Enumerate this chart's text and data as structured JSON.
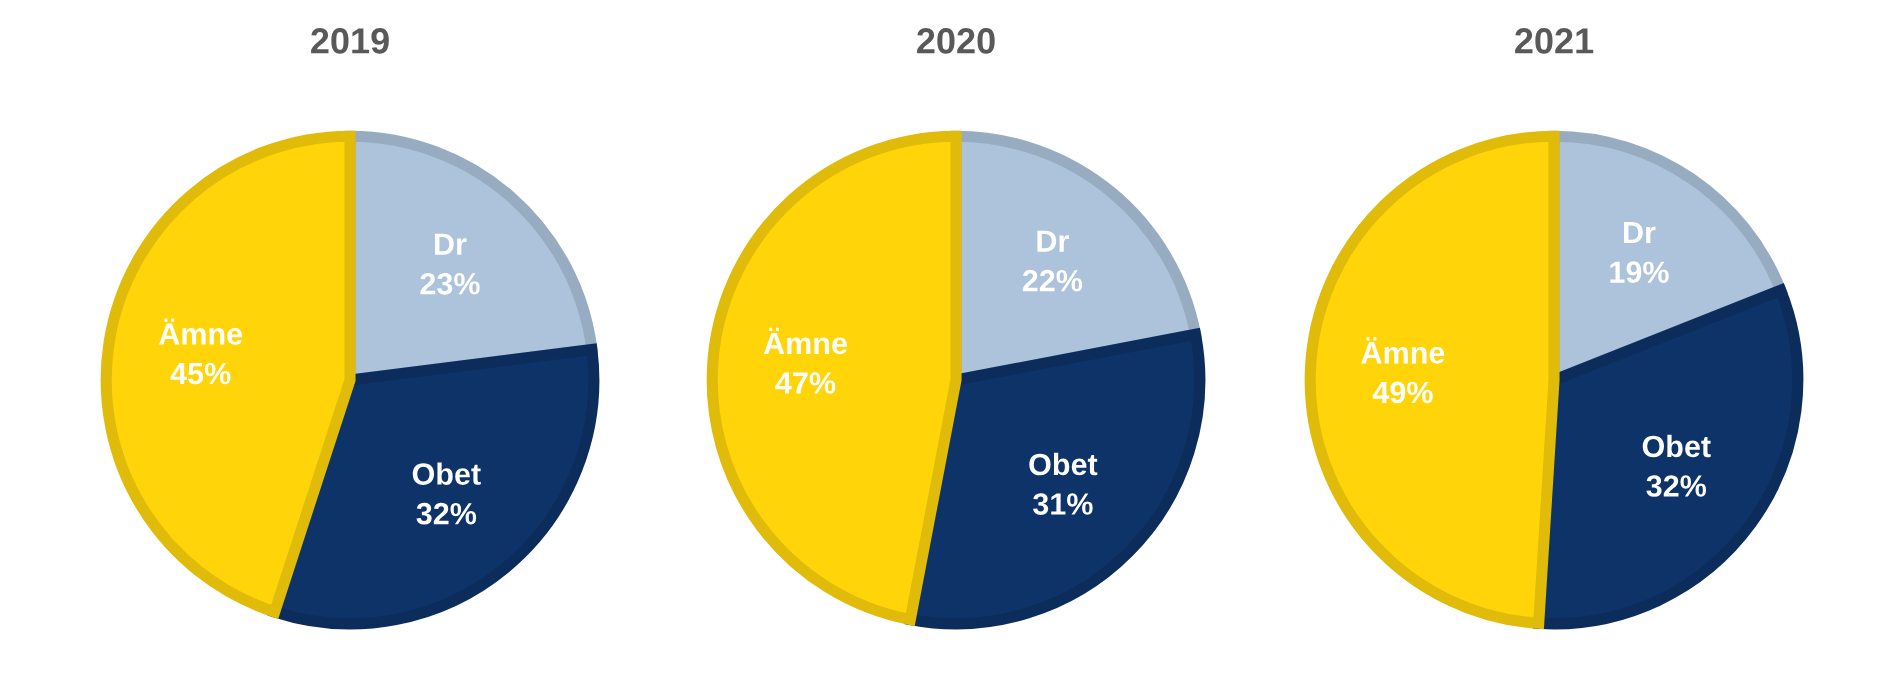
{
  "chart_data": [
    {
      "type": "pie",
      "title": "2019",
      "categories": [
        "Dr",
        "Obet",
        "Ämne"
      ],
      "values": [
        23,
        32,
        45
      ],
      "value_labels": [
        "23%",
        "32%",
        "45%"
      ],
      "colors": [
        "#adc3db",
        "#0e3369",
        "#ffd50a"
      ]
    },
    {
      "type": "pie",
      "title": "2020",
      "categories": [
        "Dr",
        "Obet",
        "Ämne"
      ],
      "values": [
        22,
        31,
        47
      ],
      "value_labels": [
        "22%",
        "31%",
        "47%"
      ],
      "colors": [
        "#adc3db",
        "#0e3369",
        "#ffd50a"
      ]
    },
    {
      "type": "pie",
      "title": "2021",
      "categories": [
        "Dr",
        "Obet",
        "Ämne"
      ],
      "values": [
        19,
        32,
        49
      ],
      "value_labels": [
        "19%",
        "32%",
        "49%"
      ],
      "colors": [
        "#adc3db",
        "#0e3369",
        "#ffd50a"
      ]
    }
  ]
}
